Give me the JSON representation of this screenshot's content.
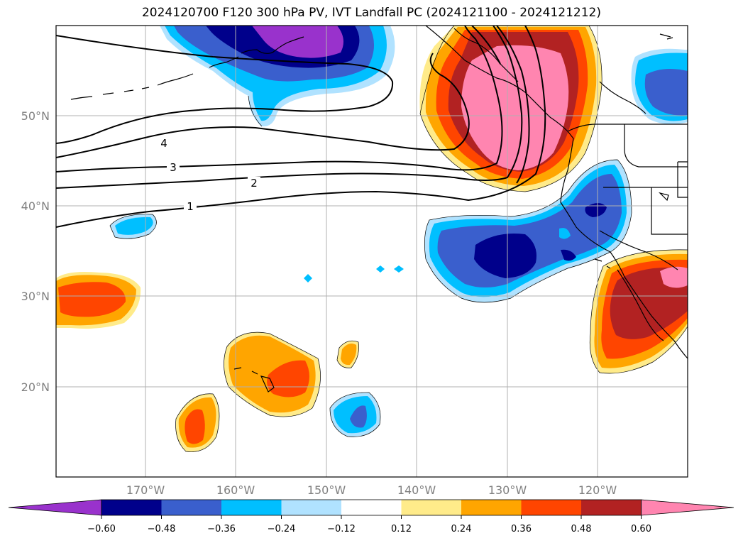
{
  "title": "2024120700 F120 300 hPa PV, IVT Landfall PC (2024121100 - 2024121212)",
  "lat_labels": [
    "50°N",
    "40°N",
    "30°N",
    "20°N"
  ],
  "lon_labels": [
    "170°W",
    "160°W",
    "150°W",
    "140°W",
    "130°W",
    "120°W"
  ],
  "contour_labels": [
    "4",
    "3",
    "2",
    "1"
  ],
  "colorbar": {
    "ticks": [
      "−0.60",
      "−0.48",
      "−0.36",
      "−0.24",
      "−0.12",
      "0.12",
      "0.24",
      "0.36",
      "0.48",
      "0.60"
    ],
    "colors": [
      "#9932cc",
      "#00008b",
      "#3a5fcd",
      "#00bfff",
      "#b0e2ff",
      "#ffffff",
      "#ffeb8a",
      "#ffa500",
      "#ff4500",
      "#b22222",
      "#ff85b0",
      "#ff85b0"
    ]
  }
}
